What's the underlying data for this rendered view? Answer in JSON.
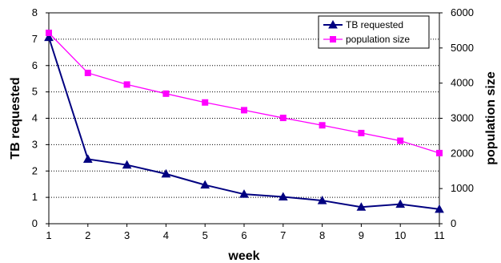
{
  "chart_data": {
    "type": "line",
    "title": "",
    "xlabel": "week",
    "ylabel": "TB requested",
    "y2label": "population size",
    "x": [
      1,
      2,
      3,
      4,
      5,
      6,
      7,
      8,
      9,
      10,
      11
    ],
    "x_ticks": [
      "1",
      "2",
      "3",
      "4",
      "5",
      "6",
      "7",
      "8",
      "9",
      "10",
      "11"
    ],
    "ylim": [
      0,
      8
    ],
    "y_ticks": [
      "0",
      "1",
      "2",
      "3",
      "4",
      "5",
      "6",
      "7",
      "8"
    ],
    "y2lim": [
      0,
      6000
    ],
    "y2_ticks": [
      "0",
      "1000",
      "2000",
      "3000",
      "4000",
      "5000",
      "6000"
    ],
    "grid": "horizontal dotted",
    "legend_position": "top-right",
    "series": [
      {
        "name": "TB requested",
        "axis": "left",
        "marker": "triangle",
        "color": "#000080",
        "values": [
          7.07,
          2.45,
          2.23,
          1.89,
          1.47,
          1.12,
          1.02,
          0.88,
          0.63,
          0.74,
          0.55
        ]
      },
      {
        "name": "population size",
        "axis": "right",
        "marker": "square",
        "color": "#ff00ff",
        "values": [
          5430,
          4290,
          3960,
          3700,
          3450,
          3230,
          3010,
          2800,
          2580,
          2360,
          2010
        ]
      }
    ]
  }
}
